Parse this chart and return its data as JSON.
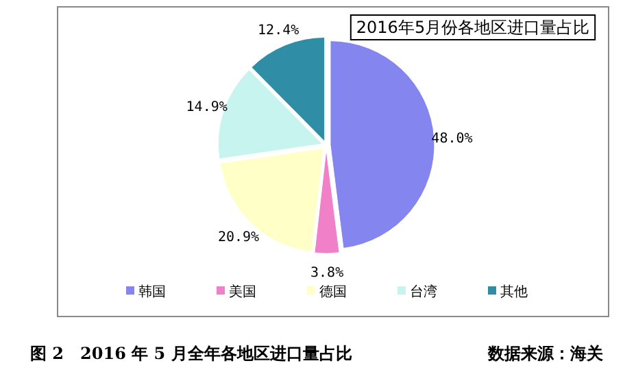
{
  "chart_data": {
    "type": "pie",
    "title": "2016年5月份各地区进口量占比",
    "categories": [
      "韩国",
      "美国",
      "德国",
      "台湾",
      "其他"
    ],
    "values": [
      48.0,
      3.8,
      20.9,
      14.9,
      12.4
    ],
    "value_labels": [
      "48.0%",
      "3.8%",
      "20.9%",
      "14.9%",
      "12.4%"
    ],
    "colors": [
      "#8585f0",
      "#f080c8",
      "#ffffc8",
      "#c8f4f0",
      "#2f8ea6"
    ],
    "legend": "bottom",
    "annotations": [
      "图 2　2016 年 5 月全年各地区进口量占比",
      "数据来源：海关"
    ]
  }
}
